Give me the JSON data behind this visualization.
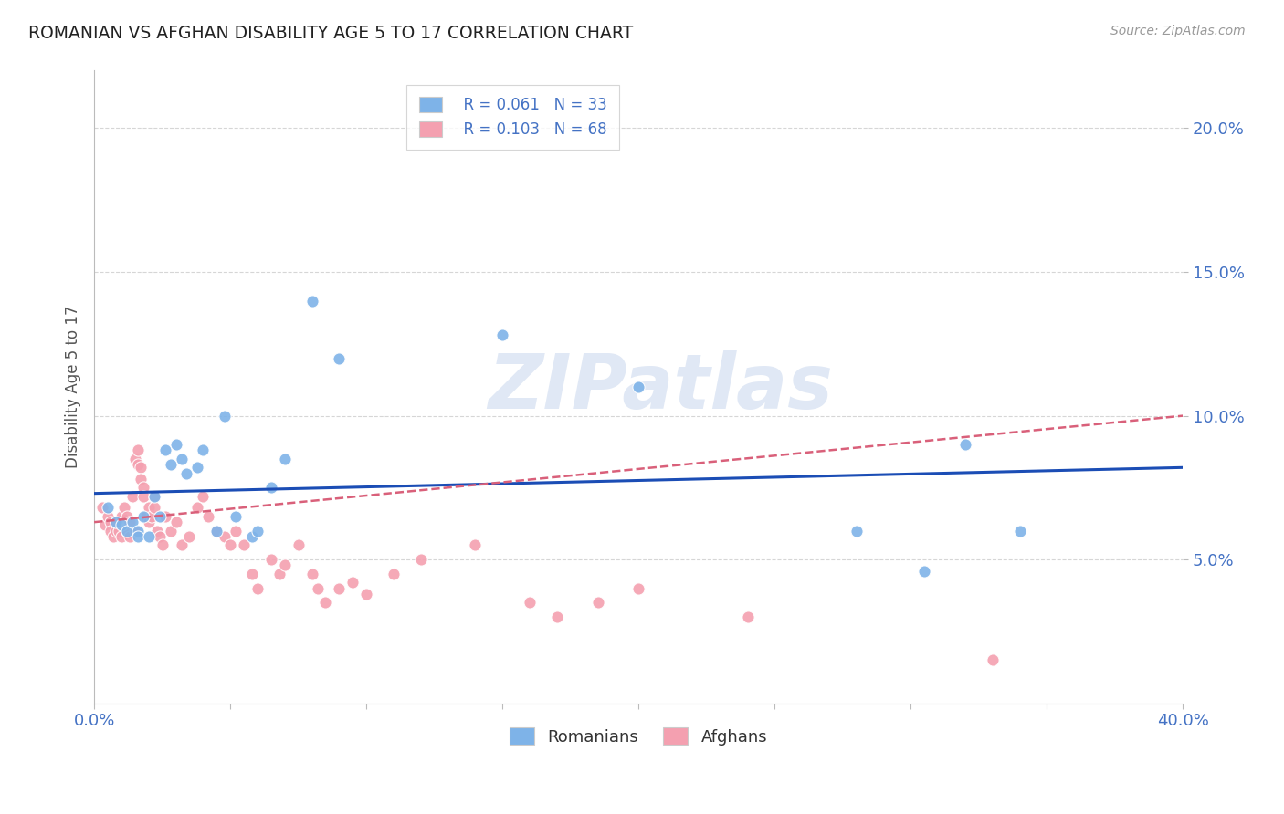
{
  "title": "ROMANIAN VS AFGHAN DISABILITY AGE 5 TO 17 CORRELATION CHART",
  "source": "Source: ZipAtlas.com",
  "xlabel": "",
  "ylabel": "Disability Age 5 to 17",
  "xlim": [
    0.0,
    0.4
  ],
  "ylim": [
    0.0,
    0.22
  ],
  "yticks": [
    0.05,
    0.1,
    0.15,
    0.2
  ],
  "ytick_labels": [
    "5.0%",
    "10.0%",
    "15.0%",
    "20.0%"
  ],
  "xticks": [
    0.0,
    0.05,
    0.1,
    0.15,
    0.2,
    0.25,
    0.3,
    0.35,
    0.4
  ],
  "xtick_labels": [
    "0.0%",
    "",
    "",
    "",
    "",
    "",
    "",
    "",
    "40.0%"
  ],
  "legend_r_romanian": "R = 0.061",
  "legend_n_romanian": "N = 33",
  "legend_r_afghan": "R = 0.103",
  "legend_n_afghan": "N = 68",
  "romanian_color": "#7EB3E8",
  "afghan_color": "#F4A0B0",
  "trendline_romanian_color": "#1B4DB5",
  "trendline_afghan_color": "#D9607A",
  "watermark": "ZIPatlas",
  "background_color": "#FFFFFF",
  "romanians_x": [
    0.005,
    0.008,
    0.01,
    0.012,
    0.014,
    0.016,
    0.016,
    0.018,
    0.02,
    0.022,
    0.024,
    0.026,
    0.028,
    0.03,
    0.032,
    0.034,
    0.038,
    0.04,
    0.045,
    0.048,
    0.052,
    0.058,
    0.06,
    0.065,
    0.07,
    0.08,
    0.09,
    0.15,
    0.2,
    0.28,
    0.305,
    0.32,
    0.34
  ],
  "romanians_y": [
    0.068,
    0.063,
    0.062,
    0.06,
    0.063,
    0.06,
    0.058,
    0.065,
    0.058,
    0.072,
    0.065,
    0.088,
    0.083,
    0.09,
    0.085,
    0.08,
    0.082,
    0.088,
    0.06,
    0.1,
    0.065,
    0.058,
    0.06,
    0.075,
    0.085,
    0.14,
    0.12,
    0.128,
    0.11,
    0.06,
    0.046,
    0.09,
    0.06
  ],
  "afghans_x": [
    0.003,
    0.004,
    0.005,
    0.006,
    0.006,
    0.007,
    0.008,
    0.008,
    0.009,
    0.01,
    0.01,
    0.011,
    0.012,
    0.012,
    0.013,
    0.013,
    0.014,
    0.015,
    0.015,
    0.016,
    0.016,
    0.017,
    0.017,
    0.018,
    0.018,
    0.019,
    0.02,
    0.02,
    0.021,
    0.022,
    0.022,
    0.023,
    0.024,
    0.025,
    0.026,
    0.028,
    0.03,
    0.032,
    0.035,
    0.038,
    0.04,
    0.042,
    0.045,
    0.048,
    0.05,
    0.052,
    0.055,
    0.058,
    0.06,
    0.065,
    0.068,
    0.07,
    0.075,
    0.08,
    0.082,
    0.085,
    0.09,
    0.095,
    0.1,
    0.11,
    0.12,
    0.14,
    0.16,
    0.17,
    0.185,
    0.2,
    0.24,
    0.33
  ],
  "afghans_y": [
    0.068,
    0.062,
    0.065,
    0.063,
    0.06,
    0.058,
    0.06,
    0.063,
    0.06,
    0.065,
    0.058,
    0.068,
    0.065,
    0.06,
    0.063,
    0.058,
    0.072,
    0.085,
    0.06,
    0.088,
    0.083,
    0.082,
    0.078,
    0.075,
    0.072,
    0.065,
    0.063,
    0.068,
    0.065,
    0.072,
    0.068,
    0.06,
    0.058,
    0.055,
    0.065,
    0.06,
    0.063,
    0.055,
    0.058,
    0.068,
    0.072,
    0.065,
    0.06,
    0.058,
    0.055,
    0.06,
    0.055,
    0.045,
    0.04,
    0.05,
    0.045,
    0.048,
    0.055,
    0.045,
    0.04,
    0.035,
    0.04,
    0.042,
    0.038,
    0.045,
    0.05,
    0.055,
    0.035,
    0.03,
    0.035,
    0.04,
    0.03,
    0.015
  ],
  "trendline_rom_start_y": 0.073,
  "trendline_rom_end_y": 0.082,
  "trendline_aff_start_y": 0.063,
  "trendline_aff_end_y": 0.1
}
